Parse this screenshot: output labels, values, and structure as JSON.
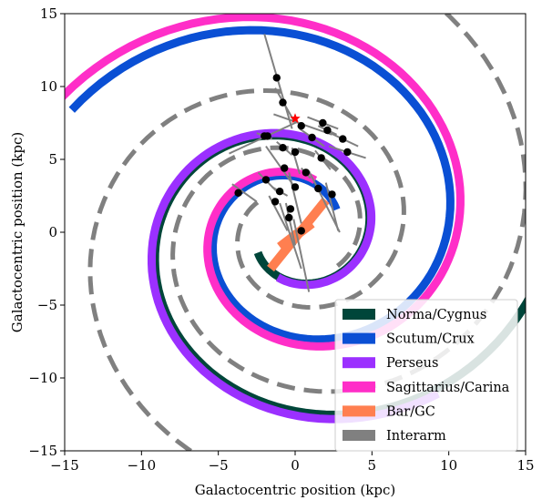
{
  "chart_data": {
    "type": "scatter",
    "title": "",
    "xlabel": "Galactocentric position (kpc)",
    "ylabel": "Galactocentric position (kpc)",
    "xlim": [
      -15,
      15
    ],
    "ylim": [
      -15,
      15
    ],
    "xticks": [
      -15,
      -10,
      -5,
      0,
      5,
      10,
      15
    ],
    "yticks": [
      -15,
      -10,
      -5,
      0,
      5,
      10,
      15
    ],
    "grid": false,
    "legend_position": "bottom-right",
    "arms": [
      {
        "name": "Norma/Cygnus",
        "color": "#00463a",
        "r0": 2.8,
        "theta0_deg": 210,
        "pitch_deg": 11.4,
        "turns_deg": 540,
        "dashed": false
      },
      {
        "name": "Scutum/Crux",
        "color": "#0a4fd4",
        "r0": 3.1,
        "theta0_deg": 30,
        "pitch_deg": 11.4,
        "turns_deg": 480,
        "dashed": false
      },
      {
        "name": "Perseus",
        "color": "#9b30ff",
        "r0": 3.3,
        "theta0_deg": 250,
        "pitch_deg": 11.4,
        "turns_deg": 420,
        "dashed": false
      },
      {
        "name": "Sagittarius/Carina",
        "color": "#ff2ec8",
        "r0": 3.8,
        "theta0_deg": 70,
        "pitch_deg": 11.4,
        "turns_deg": 470,
        "dashed": false
      },
      {
        "name": "Interarm",
        "color": "#808080",
        "r0": 3.2,
        "theta0_deg": 140,
        "pitch_deg": 11.4,
        "turns_deg": 520,
        "dashed": true
      },
      {
        "name": "Interarm",
        "color": "#808080",
        "r0": 3.6,
        "theta0_deg": 320,
        "pitch_deg": 11.4,
        "turns_deg": 480,
        "dashed": true
      }
    ],
    "bar": {
      "name": "Bar/GC",
      "color": "#ff7f50",
      "segments": [
        [
          [
            -1.6,
            -2.5
          ],
          [
            2.0,
            2.2
          ]
        ],
        [
          [
            -1.0,
            -1.0
          ],
          [
            0.6,
            0.3
          ]
        ],
        [
          [
            -0.4,
            -0.6
          ],
          [
            1.1,
            0.6
          ]
        ]
      ]
    },
    "sun": {
      "x": 0,
      "y": 7.8,
      "color": "#ff0000"
    },
    "sources": [
      {
        "x": -1.2,
        "y": 10.6,
        "dx": [
          -0.8,
          1.0
        ],
        "dy": [
          3.0,
          -3.5
        ]
      },
      {
        "x": -0.8,
        "y": 8.9,
        "dx": [
          -0.5,
          0.8
        ],
        "dy": [
          1.0,
          -1.4
        ]
      },
      {
        "x": 0.4,
        "y": 7.3,
        "dx": [
          -1.8,
          2.0
        ],
        "dy": [
          0.8,
          -0.6
        ]
      },
      {
        "x": 1.8,
        "y": 7.5,
        "dx": [
          -1.0,
          1.0
        ],
        "dy": [
          0.4,
          -0.4
        ]
      },
      {
        "x": 2.1,
        "y": 7.0,
        "dx": [
          -0.6,
          0.6
        ],
        "dy": [
          0.3,
          -0.3
        ]
      },
      {
        "x": 1.1,
        "y": 6.5,
        "dx": [
          -0.8,
          0.8
        ],
        "dy": [
          0.6,
          -0.6
        ]
      },
      {
        "x": 3.1,
        "y": 6.4,
        "dx": [
          -1.0,
          1.0
        ],
        "dy": [
          0.5,
          -0.5
        ]
      },
      {
        "x": 3.4,
        "y": 5.5,
        "dx": [
          -1.2,
          1.2
        ],
        "dy": [
          0.4,
          -0.4
        ]
      },
      {
        "x": -1.8,
        "y": 6.6,
        "dx": [
          -2.5,
          2.0
        ],
        "dy": [
          -1.2,
          1.0
        ]
      },
      {
        "x": -2.0,
        "y": 6.6,
        "dx": [
          -0.5,
          0.5
        ],
        "dy": [
          0.2,
          -0.2
        ]
      },
      {
        "x": -0.8,
        "y": 5.8,
        "dx": [
          -0.4,
          0.6
        ],
        "dy": [
          0.4,
          -0.5
        ]
      },
      {
        "x": 0.0,
        "y": 5.5,
        "dx": [
          -0.2,
          0.3
        ],
        "dy": [
          0.3,
          -1.5
        ]
      },
      {
        "x": 1.7,
        "y": 5.1,
        "dx": [
          -0.4,
          0.6
        ],
        "dy": [
          0.5,
          -0.8
        ]
      },
      {
        "x": -0.7,
        "y": 4.4,
        "dx": [
          -1.2,
          0.8
        ],
        "dy": [
          1.5,
          -1.5
        ]
      },
      {
        "x": 0.7,
        "y": 4.1,
        "dx": [
          -0.3,
          0.3
        ],
        "dy": [
          0.3,
          -0.4
        ]
      },
      {
        "x": -1.9,
        "y": 3.6,
        "dx": [
          -0.5,
          0.7
        ],
        "dy": [
          0.5,
          -0.8
        ]
      },
      {
        "x": -3.7,
        "y": 2.7,
        "dx": [
          -0.4,
          1.2
        ],
        "dy": [
          0.6,
          -0.6
        ]
      },
      {
        "x": -1.0,
        "y": 2.8,
        "dx": [
          -0.5,
          0.5
        ],
        "dy": [
          0.3,
          -0.3
        ]
      },
      {
        "x": 0.0,
        "y": 3.1,
        "dx": [
          -0.4,
          0.4
        ],
        "dy": [
          1.0,
          -2.5
        ]
      },
      {
        "x": 1.5,
        "y": 3.0,
        "dx": [
          -0.6,
          1.4
        ],
        "dy": [
          1.2,
          -3.0
        ]
      },
      {
        "x": 2.4,
        "y": 2.6,
        "dx": [
          -0.4,
          0.4
        ],
        "dy": [
          0.8,
          -2.5
        ]
      },
      {
        "x": -1.3,
        "y": 2.1,
        "dx": [
          -0.4,
          0.8
        ],
        "dy": [
          0.4,
          -2.0
        ]
      },
      {
        "x": -0.3,
        "y": 1.6,
        "dx": [
          -0.3,
          0.3
        ],
        "dy": [
          0.4,
          -2.5
        ]
      },
      {
        "x": -0.4,
        "y": 1.0,
        "dx": [
          -0.6,
          0.8
        ],
        "dy": [
          1.0,
          -3.5
        ]
      },
      {
        "x": 0.4,
        "y": 0.1,
        "dx": [
          -0.5,
          0.5
        ],
        "dy": [
          0.8,
          -4.2
        ]
      }
    ],
    "legend": [
      {
        "label": "Norma/Cygnus",
        "color": "#00463a"
      },
      {
        "label": "Scutum/Crux",
        "color": "#0a4fd4"
      },
      {
        "label": "Perseus",
        "color": "#9b30ff"
      },
      {
        "label": "Sagittarius/Carina",
        "color": "#ff2ec8"
      },
      {
        "label": "Bar/GC",
        "color": "#ff7f50"
      },
      {
        "label": "Interarm",
        "color": "#808080"
      }
    ]
  }
}
